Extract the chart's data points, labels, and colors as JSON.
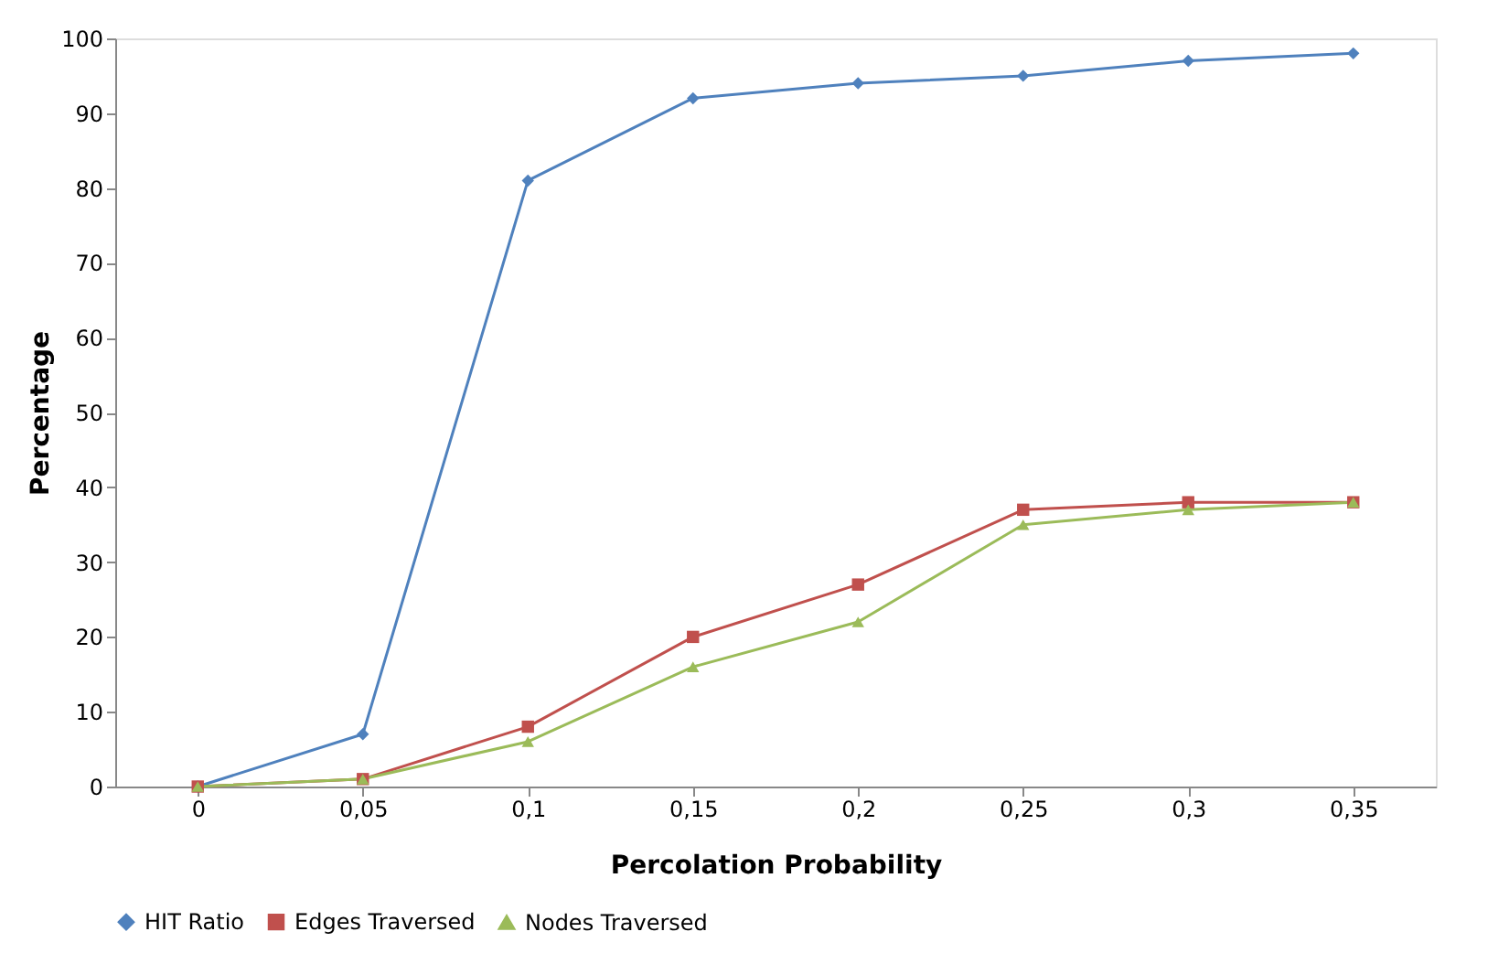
{
  "chart_data": {
    "type": "line",
    "xlabel": "Percolation Probability",
    "ylabel": "Percentage",
    "categories": [
      "0",
      "0,05",
      "0,1",
      "0,15",
      "0,2",
      "0,25",
      "0,3",
      "0,35"
    ],
    "series": [
      {
        "name": "HIT Ratio",
        "color": "#4f81bd",
        "marker": "diamond",
        "values": [
          0,
          7,
          81,
          92,
          94,
          95,
          97,
          98
        ]
      },
      {
        "name": "Edges Traversed",
        "color": "#c0504d",
        "marker": "square",
        "values": [
          0,
          1,
          8,
          20,
          27,
          37,
          38,
          38
        ]
      },
      {
        "name": "Nodes Traversed",
        "color": "#9bbb59",
        "marker": "triangle",
        "values": [
          0,
          1,
          6,
          16,
          22,
          35,
          37,
          38
        ]
      }
    ],
    "ylim": [
      0,
      100
    ],
    "yticks": [
      0,
      10,
      20,
      30,
      40,
      50,
      60,
      70,
      80,
      90,
      100
    ],
    "grid": false,
    "legend": "bottom",
    "line_style": "solid"
  }
}
